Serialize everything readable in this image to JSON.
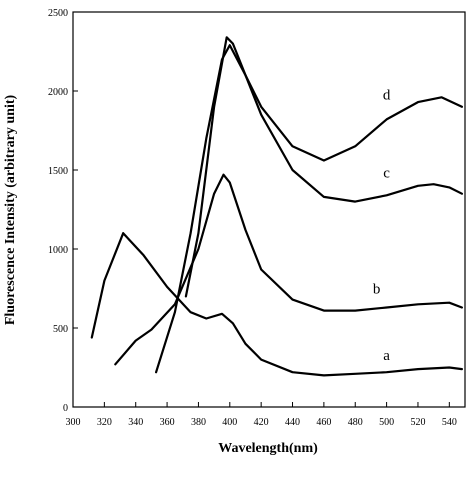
{
  "chart_data": {
    "type": "line",
    "x_label": "Wavelength(nm)",
    "y_label": "Fluorescence Intensity (arbitrary unit)",
    "xlim": [
      300,
      550
    ],
    "ylim": [
      0,
      2500
    ],
    "xticks": [
      300,
      320,
      340,
      360,
      380,
      400,
      420,
      440,
      460,
      480,
      500,
      520,
      540
    ],
    "yticks": [
      0,
      500,
      1000,
      1500,
      2000,
      2500
    ],
    "grid": false,
    "series": [
      {
        "name": "a",
        "color": "#000000",
        "x": [
          312,
          320,
          332,
          345,
          360,
          375,
          385,
          395,
          402,
          410,
          420,
          440,
          460,
          480,
          500,
          520,
          540,
          548
        ],
        "values": [
          440,
          800,
          1100,
          960,
          760,
          600,
          560,
          590,
          530,
          400,
          300,
          220,
          200,
          210,
          220,
          240,
          250,
          240
        ]
      },
      {
        "name": "b",
        "color": "#000000",
        "x": [
          327,
          340,
          350,
          365,
          380,
          390,
          396,
          400,
          410,
          420,
          440,
          460,
          480,
          500,
          520,
          540,
          548
        ],
        "values": [
          270,
          420,
          490,
          650,
          1000,
          1350,
          1470,
          1420,
          1120,
          870,
          680,
          610,
          610,
          630,
          650,
          660,
          630
        ]
      },
      {
        "name": "c",
        "color": "#000000",
        "x": [
          353,
          365,
          375,
          385,
          395,
          400,
          410,
          420,
          440,
          460,
          480,
          500,
          520,
          530,
          540,
          548
        ],
        "values": [
          220,
          600,
          1100,
          1700,
          2200,
          2290,
          2100,
          1850,
          1500,
          1330,
          1300,
          1340,
          1400,
          1410,
          1390,
          1350
        ]
      },
      {
        "name": "d",
        "color": "#000000",
        "x": [
          372,
          380,
          390,
          398,
          402,
          410,
          420,
          440,
          460,
          480,
          500,
          520,
          535,
          548
        ],
        "values": [
          700,
          1100,
          1900,
          2340,
          2300,
          2100,
          1900,
          1650,
          1560,
          1650,
          1820,
          1930,
          1960,
          1900
        ]
      }
    ]
  }
}
